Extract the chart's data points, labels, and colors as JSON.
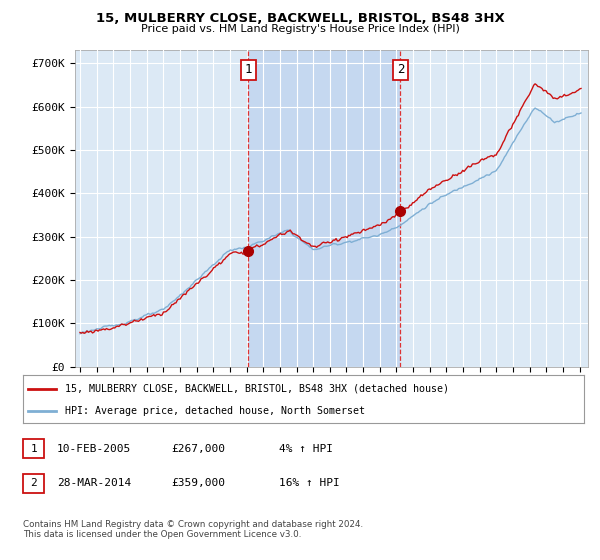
{
  "title1": "15, MULBERRY CLOSE, BACKWELL, BRISTOL, BS48 3HX",
  "title2": "Price paid vs. HM Land Registry's House Price Index (HPI)",
  "ylabel_ticks": [
    "£0",
    "£100K",
    "£200K",
    "£300K",
    "£400K",
    "£500K",
    "£600K",
    "£700K"
  ],
  "ytick_vals": [
    0,
    100000,
    200000,
    300000,
    400000,
    500000,
    600000,
    700000
  ],
  "ylim": [
    0,
    730000
  ],
  "xlim_start": 1994.7,
  "xlim_end": 2025.5,
  "bg_color": "#dce9f5",
  "shaded_color": "#c5d8f0",
  "grid_color": "#ffffff",
  "sale1_x": 2005.1,
  "sale1_y": 267000,
  "sale2_x": 2014.24,
  "sale2_y": 359000,
  "vline_color": "#dd3333",
  "red_line_color": "#cc1111",
  "blue_line_color": "#7fafd4",
  "marker_color": "#aa0000",
  "legend_label1": "15, MULBERRY CLOSE, BACKWELL, BRISTOL, BS48 3HX (detached house)",
  "legend_label2": "HPI: Average price, detached house, North Somerset",
  "table_row1": [
    "1",
    "10-FEB-2005",
    "£267,000",
    "4% ↑ HPI"
  ],
  "table_row2": [
    "2",
    "28-MAR-2014",
    "£359,000",
    "16% ↑ HPI"
  ],
  "footnote": "Contains HM Land Registry data © Crown copyright and database right 2024.\nThis data is licensed under the Open Government Licence v3.0."
}
